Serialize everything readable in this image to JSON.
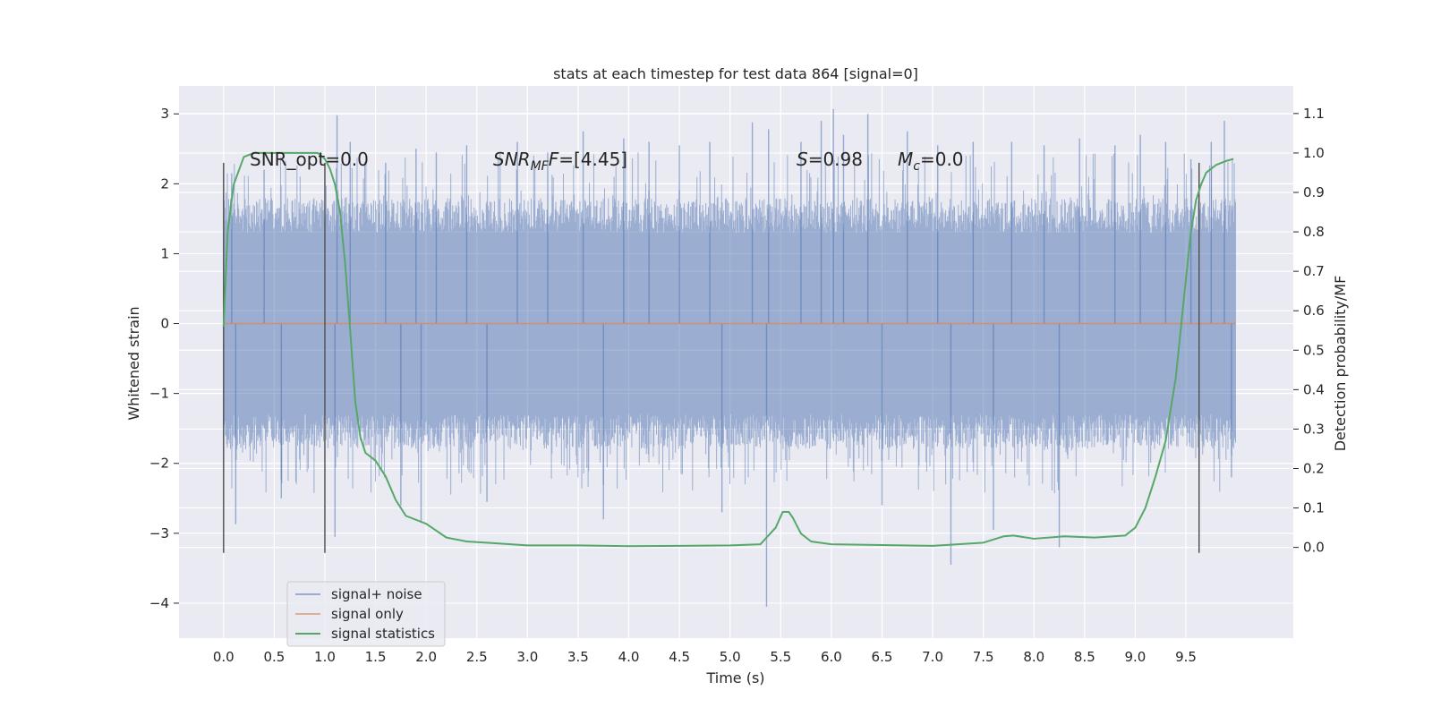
{
  "chart_data": {
    "type": "line",
    "title": "stats at each timestep for test data 864 [signal=0]",
    "xlabel": "Time (s)",
    "ylabel": "Whitened strain",
    "y2label": "Detection probability/MF",
    "xlim": [
      -0.44,
      10.56
    ],
    "ylim": [
      -4.5,
      3.4
    ],
    "y2lim": [
      -0.23,
      1.17
    ],
    "xticks": [
      0.0,
      0.5,
      1.0,
      1.5,
      2.0,
      2.5,
      3.0,
      3.5,
      4.0,
      4.5,
      5.0,
      5.5,
      6.0,
      6.5,
      7.0,
      7.5,
      8.0,
      8.5,
      9.0,
      9.5
    ],
    "xtick_labels": [
      "0.0",
      "0.5",
      "1.0",
      "1.5",
      "2.0",
      "2.5",
      "3.0",
      "3.5",
      "4.0",
      "4.5",
      "5.0",
      "5.5",
      "6.0",
      "6.5",
      "7.0",
      "7.5",
      "8.0",
      "8.5",
      "9.0",
      "9.5"
    ],
    "yticks": [
      3,
      2,
      1,
      0,
      -1,
      -2,
      -3,
      -4
    ],
    "ytick_labels": [
      "3",
      "2",
      "1",
      "0",
      "−1",
      "−2",
      "−3",
      "−4"
    ],
    "y2ticks": [
      1.1,
      1.0,
      0.9,
      0.8,
      0.7,
      0.6,
      0.5,
      0.4,
      0.3,
      0.2,
      0.1,
      0.0
    ],
    "y2tick_labels": [
      "1.1",
      "1.0",
      "0.9",
      "0.8",
      "0.7",
      "0.6",
      "0.5",
      "0.4",
      "0.3",
      "0.2",
      "0.1",
      "0.0"
    ],
    "grid": true,
    "legend_position": "lower-left",
    "annotations": {
      "snr_opt": "SNR_opt=0.0",
      "snr_mf_symbol": "SNR",
      "snr_mf_sub": "MF",
      "snr_mf_value": "=[4.45]",
      "s_symbol": "S",
      "s_value": "=0.98",
      "mc_symbol": "M",
      "mc_sub": "c",
      "mc_value": "=0.0"
    },
    "vertical_lines_x": [
      0.0,
      1.0,
      9.63
    ],
    "vertical_line_y_range": [
      -3.28,
      2.3
    ],
    "noise_band": {
      "x_range": [
        0.0,
        9.99
      ],
      "typical_envelope": [
        -1.6,
        1.7
      ],
      "max": 3.07,
      "min": -4.05
    },
    "noise_spikes": [
      {
        "x": 0.08,
        "y": 2.15
      },
      {
        "x": 0.12,
        "y": -2.87
      },
      {
        "x": 0.4,
        "y": 2.2
      },
      {
        "x": 0.57,
        "y": -2.5
      },
      {
        "x": 1.12,
        "y": 2.98
      },
      {
        "x": 1.1,
        "y": -3.05
      },
      {
        "x": 1.25,
        "y": 2.6
      },
      {
        "x": 1.6,
        "y": 2.3
      },
      {
        "x": 1.75,
        "y": -2.6
      },
      {
        "x": 1.9,
        "y": 2.5
      },
      {
        "x": 1.95,
        "y": -2.85
      },
      {
        "x": 2.1,
        "y": 2.45
      },
      {
        "x": 2.4,
        "y": 2.55
      },
      {
        "x": 2.6,
        "y": -2.55
      },
      {
        "x": 2.9,
        "y": 2.6
      },
      {
        "x": 3.2,
        "y": 2.45
      },
      {
        "x": 3.55,
        "y": 2.75
      },
      {
        "x": 3.75,
        "y": -2.8
      },
      {
        "x": 3.95,
        "y": 2.65
      },
      {
        "x": 4.2,
        "y": 2.6
      },
      {
        "x": 4.5,
        "y": 2.55
      },
      {
        "x": 4.8,
        "y": 2.6
      },
      {
        "x": 4.92,
        "y": -2.7
      },
      {
        "x": 5.22,
        "y": 2.88
      },
      {
        "x": 5.36,
        "y": -4.05
      },
      {
        "x": 5.38,
        "y": 2.78
      },
      {
        "x": 5.7,
        "y": 2.6
      },
      {
        "x": 5.9,
        "y": 2.9
      },
      {
        "x": 6.02,
        "y": 3.07
      },
      {
        "x": 6.12,
        "y": 2.7
      },
      {
        "x": 6.36,
        "y": 3.0
      },
      {
        "x": 6.5,
        "y": -2.6
      },
      {
        "x": 6.75,
        "y": 2.75
      },
      {
        "x": 7.05,
        "y": 2.55
      },
      {
        "x": 7.18,
        "y": -3.45
      },
      {
        "x": 7.4,
        "y": 2.6
      },
      {
        "x": 7.6,
        "y": -2.95
      },
      {
        "x": 7.78,
        "y": 2.6
      },
      {
        "x": 8.1,
        "y": 2.55
      },
      {
        "x": 8.25,
        "y": -3.2
      },
      {
        "x": 8.45,
        "y": 2.65
      },
      {
        "x": 8.8,
        "y": 2.55
      },
      {
        "x": 9.05,
        "y": 2.7
      },
      {
        "x": 9.3,
        "y": 2.6
      },
      {
        "x": 9.55,
        "y": 2.35
      },
      {
        "x": 9.75,
        "y": 2.6
      },
      {
        "x": 9.88,
        "y": 2.9
      },
      {
        "x": 9.95,
        "y": -2.2
      }
    ],
    "series": [
      {
        "name": "signal+ noise",
        "color": "#4c72b0",
        "opacity": 0.5,
        "axis": "left"
      },
      {
        "name": "signal only",
        "color": "#dd8452",
        "axis": "left",
        "x": [
          0.0,
          9.99
        ],
        "y": [
          0.0,
          0.0
        ]
      },
      {
        "name": "signal statistics",
        "color": "#55a868",
        "axis": "right",
        "x": [
          0.0,
          0.04,
          0.1,
          0.2,
          0.3,
          0.5,
          0.7,
          0.85,
          0.93,
          1.0,
          1.05,
          1.1,
          1.15,
          1.2,
          1.25,
          1.3,
          1.35,
          1.4,
          1.5,
          1.6,
          1.7,
          1.8,
          2.0,
          2.2,
          2.4,
          2.6,
          3.0,
          3.5,
          4.0,
          4.5,
          5.0,
          5.3,
          5.45,
          5.52,
          5.58,
          5.62,
          5.7,
          5.8,
          6.0,
          6.5,
          7.0,
          7.5,
          7.7,
          7.8,
          8.0,
          8.3,
          8.6,
          8.9,
          9.0,
          9.1,
          9.2,
          9.3,
          9.4,
          9.5,
          9.55,
          9.6,
          9.65,
          9.7,
          9.8,
          9.9,
          9.97
        ],
        "y": [
          0.56,
          0.8,
          0.92,
          0.99,
          1.0,
          1.0,
          1.0,
          1.0,
          1.0,
          0.985,
          0.96,
          0.92,
          0.85,
          0.72,
          0.55,
          0.37,
          0.28,
          0.24,
          0.22,
          0.18,
          0.12,
          0.08,
          0.06,
          0.025,
          0.015,
          0.012,
          0.005,
          0.005,
          0.003,
          0.004,
          0.005,
          0.008,
          0.05,
          0.09,
          0.09,
          0.075,
          0.035,
          0.015,
          0.008,
          0.006,
          0.004,
          0.012,
          0.028,
          0.03,
          0.022,
          0.028,
          0.025,
          0.03,
          0.05,
          0.1,
          0.18,
          0.27,
          0.43,
          0.68,
          0.8,
          0.88,
          0.92,
          0.95,
          0.97,
          0.98,
          0.985
        ]
      }
    ]
  }
}
